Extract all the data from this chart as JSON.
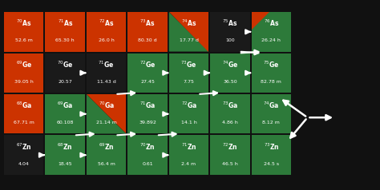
{
  "background": "#000000",
  "colors": {
    "orange": "#cc3300",
    "green": "#2d7a3a",
    "black": "#111111",
    "dark": "#1a1a1a",
    "white": "#ffffff"
  },
  "cells": [
    {
      "col": 0,
      "row": 3,
      "symbol": "As",
      "mass": 70,
      "value": "52.6 m",
      "color": "orange"
    },
    {
      "col": 1,
      "row": 3,
      "symbol": "As",
      "mass": 71,
      "value": "65.30 h",
      "color": "orange"
    },
    {
      "col": 2,
      "row": 3,
      "symbol": "As",
      "mass": 72,
      "value": "26.0 h",
      "color": "orange"
    },
    {
      "col": 3,
      "row": 3,
      "symbol": "As",
      "mass": 73,
      "value": "80.30 d",
      "color": "orange"
    },
    {
      "col": 4,
      "row": 3,
      "symbol": "As",
      "mass": 74,
      "value": "17.77 d",
      "color": "split_go"
    },
    {
      "col": 5,
      "row": 3,
      "symbol": "As",
      "mass": 75,
      "value": "100",
      "color": "dark"
    },
    {
      "col": 6,
      "row": 3,
      "symbol": "As",
      "mass": 76,
      "value": "26.24 h",
      "color": "green_oc"
    },
    {
      "col": 0,
      "row": 2,
      "symbol": "Ge",
      "mass": 69,
      "value": "39.05 h",
      "color": "orange"
    },
    {
      "col": 1,
      "row": 2,
      "symbol": "Ge",
      "mass": 70,
      "value": "20.57",
      "color": "dark"
    },
    {
      "col": 2,
      "row": 2,
      "symbol": "Ge",
      "mass": 71,
      "value": "11.43 d",
      "color": "dark"
    },
    {
      "col": 3,
      "row": 2,
      "symbol": "Ge",
      "mass": 72,
      "value": "27.45",
      "color": "green"
    },
    {
      "col": 4,
      "row": 2,
      "symbol": "Ge",
      "mass": 73,
      "value": "7.75",
      "color": "green"
    },
    {
      "col": 5,
      "row": 2,
      "symbol": "Ge",
      "mass": 74,
      "value": "36.50",
      "color": "green"
    },
    {
      "col": 6,
      "row": 2,
      "symbol": "Ge",
      "mass": 75,
      "value": "82.78 m",
      "color": "green"
    },
    {
      "col": 0,
      "row": 1,
      "symbol": "Ga",
      "mass": 68,
      "value": "67.71 m",
      "color": "orange"
    },
    {
      "col": 1,
      "row": 1,
      "symbol": "Ga",
      "mass": 69,
      "value": "60.108",
      "color": "green"
    },
    {
      "col": 2,
      "row": 1,
      "symbol": "Ga",
      "mass": 70,
      "value": "21.14 m",
      "color": "split_go"
    },
    {
      "col": 3,
      "row": 1,
      "symbol": "Ga",
      "mass": 71,
      "value": "39.892",
      "color": "green"
    },
    {
      "col": 4,
      "row": 1,
      "symbol": "Ga",
      "mass": 72,
      "value": "14.1 h",
      "color": "green"
    },
    {
      "col": 5,
      "row": 1,
      "symbol": "Ga",
      "mass": 73,
      "value": "4.86 h",
      "color": "green"
    },
    {
      "col": 6,
      "row": 1,
      "symbol": "Ga",
      "mass": 74,
      "value": "8.12 m",
      "color": "green"
    },
    {
      "col": 0,
      "row": 0,
      "symbol": "Zn",
      "mass": 67,
      "value": "4.04",
      "color": "dark"
    },
    {
      "col": 1,
      "row": 0,
      "symbol": "Zn",
      "mass": 68,
      "value": "18.45",
      "color": "green"
    },
    {
      "col": 2,
      "row": 0,
      "symbol": "Zn",
      "mass": 69,
      "value": "56.4 m",
      "color": "green"
    },
    {
      "col": 3,
      "row": 0,
      "symbol": "Zn",
      "mass": 70,
      "value": "0.61",
      "color": "green"
    },
    {
      "col": 4,
      "row": 0,
      "symbol": "Zn",
      "mass": 71,
      "value": "2.4 m",
      "color": "green"
    },
    {
      "col": 5,
      "row": 0,
      "symbol": "Zn",
      "mass": 72,
      "value": "46.5 h",
      "color": "green"
    },
    {
      "col": 6,
      "row": 0,
      "symbol": "Zn",
      "mass": 73,
      "value": "24.5 s",
      "color": "green"
    }
  ],
  "horiz_arrows": [
    [
      0,
      0,
      1,
      0
    ],
    [
      1,
      0,
      2,
      0
    ],
    [
      3,
      0,
      4,
      0
    ],
    [
      1,
      1,
      2,
      1
    ],
    [
      3,
      1,
      4,
      1
    ],
    [
      1,
      2,
      2,
      2
    ],
    [
      3,
      2,
      4,
      2
    ],
    [
      4,
      2,
      5,
      2
    ],
    [
      5,
      2,
      6,
      2
    ],
    [
      5,
      3,
      6,
      3
    ]
  ],
  "diag_arrows": [
    [
      1,
      0,
      1,
      1
    ],
    [
      2,
      0,
      2,
      1
    ],
    [
      3,
      0,
      3,
      1
    ],
    [
      2,
      1,
      2,
      2
    ],
    [
      4,
      1,
      4,
      2
    ],
    [
      5,
      2,
      5,
      3
    ],
    [
      5,
      3,
      6,
      2
    ]
  ]
}
